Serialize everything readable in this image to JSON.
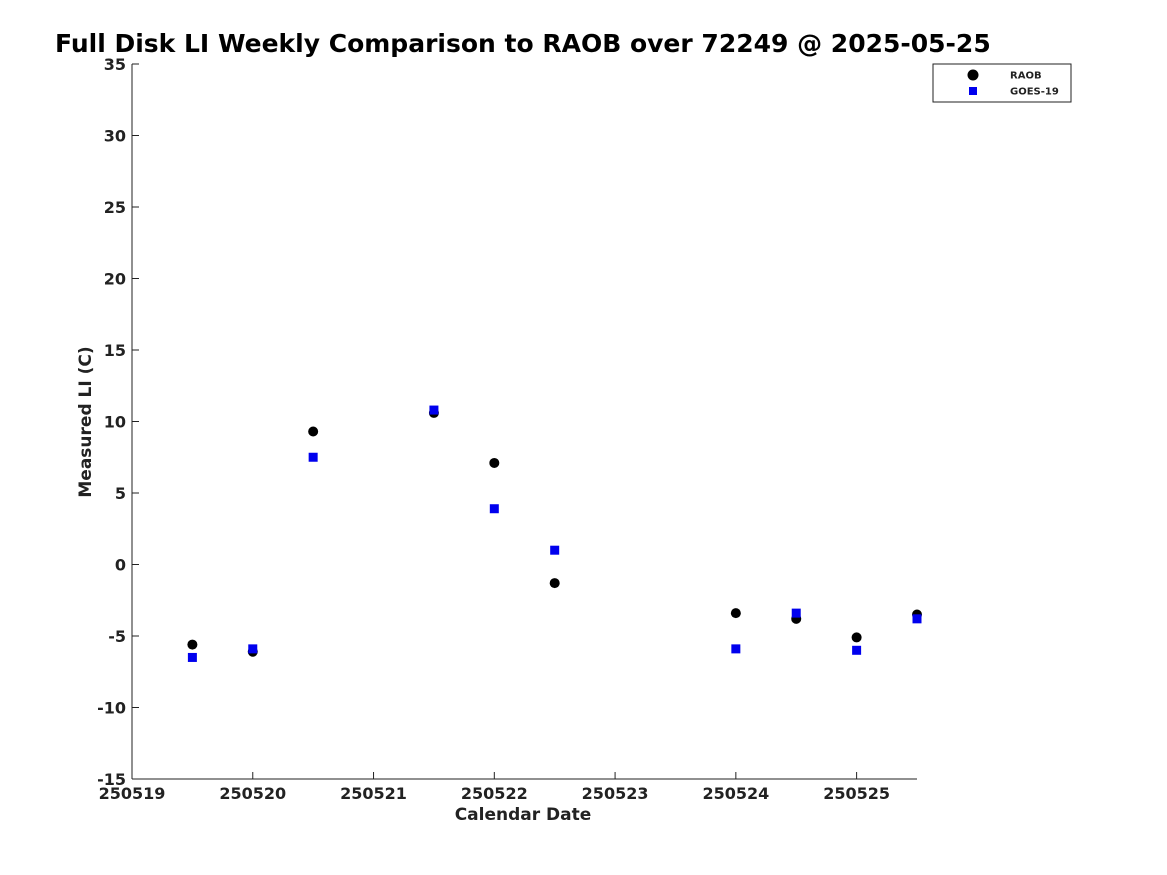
{
  "chart_data": {
    "type": "scatter",
    "title": "Full Disk LI Weekly Comparison to RAOB over 72249 @ 2025-05-25",
    "xlabel": "Calendar Date",
    "ylabel": "Measured LI (C)",
    "xlim": [
      0,
      6.5
    ],
    "ylim": [
      -15,
      35
    ],
    "x_ticks": [
      0,
      1,
      2,
      3,
      4,
      5,
      6
    ],
    "x_tick_labels": [
      "250519",
      "250520",
      "250521",
      "250522",
      "250523",
      "250524",
      "250525"
    ],
    "y_ticks": [
      -15,
      -10,
      -5,
      0,
      5,
      10,
      15,
      20,
      25,
      30,
      35
    ],
    "y_tick_labels": [
      "-15",
      "-10",
      "-5",
      "0",
      "5",
      "10",
      "15",
      "20",
      "25",
      "30",
      "35"
    ],
    "grid": false,
    "legend_position": "top-right",
    "series": [
      {
        "name": "RAOB",
        "marker": "circle",
        "color": "#000000",
        "x": [
          0.5,
          1.0,
          1.5,
          2.5,
          3.0,
          3.5,
          5.0,
          5.5,
          6.0,
          6.5
        ],
        "y": [
          -5.6,
          -6.1,
          9.3,
          10.6,
          7.1,
          -1.3,
          -3.4,
          -3.8,
          -5.1,
          -3.5
        ]
      },
      {
        "name": "GOES-19",
        "marker": "square",
        "color": "#0000ee",
        "x": [
          0.5,
          1.0,
          1.5,
          2.5,
          3.0,
          3.5,
          5.0,
          5.5,
          6.0,
          6.5
        ],
        "y": [
          -6.5,
          -5.9,
          7.5,
          10.8,
          3.9,
          1.0,
          -5.9,
          -3.4,
          -6.0,
          -3.8
        ]
      }
    ]
  }
}
